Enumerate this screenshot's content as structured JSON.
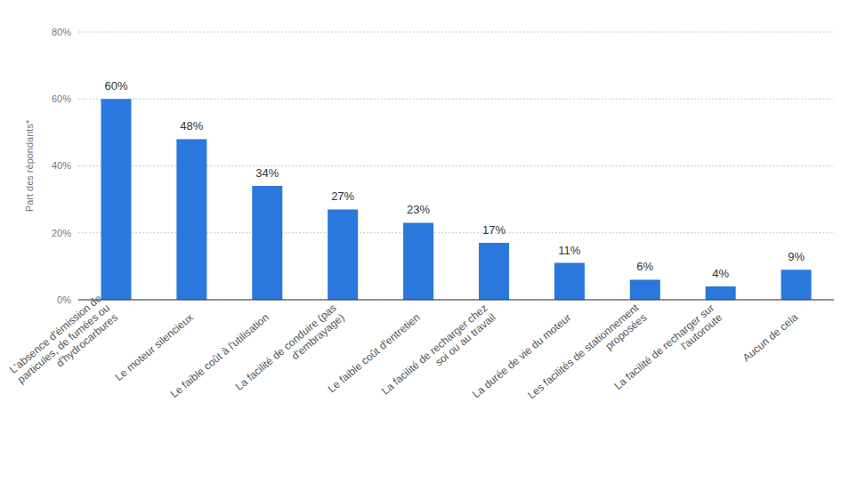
{
  "chart_data": {
    "type": "bar",
    "y_label": "Part des répondants*",
    "categories": [
      "L'absence d'émission de particules, de fumées ou d'hydrocarbures",
      "Le moteur silencieux",
      "Le faible coût à l'utilisation",
      "La facilité de conduire (pas d'embrayage)",
      "Le faible coût d'entretien",
      "La facilité de recharger chez soi ou au travail",
      "La durée de vie du moteur",
      "Les facilités de stationnement proposées",
      "La facilité de recharger sur l'autoroute",
      "Aucun de cela"
    ],
    "values": [
      60,
      48,
      34,
      27,
      23,
      17,
      11,
      6,
      4,
      9
    ],
    "value_labels": [
      "60%",
      "48%",
      "34%",
      "27%",
      "23%",
      "17%",
      "11%",
      "6%",
      "4%",
      "9%"
    ],
    "color": "#2a77dd",
    "ylim": [
      0,
      80
    ],
    "yticks": [
      {
        "value": 0,
        "label": "0%"
      },
      {
        "value": 20,
        "label": "20%"
      },
      {
        "value": 40,
        "label": "40%"
      },
      {
        "value": 60,
        "label": "60%"
      },
      {
        "value": 80,
        "label": "80%"
      }
    ],
    "grid": true,
    "data_labels": true
  }
}
